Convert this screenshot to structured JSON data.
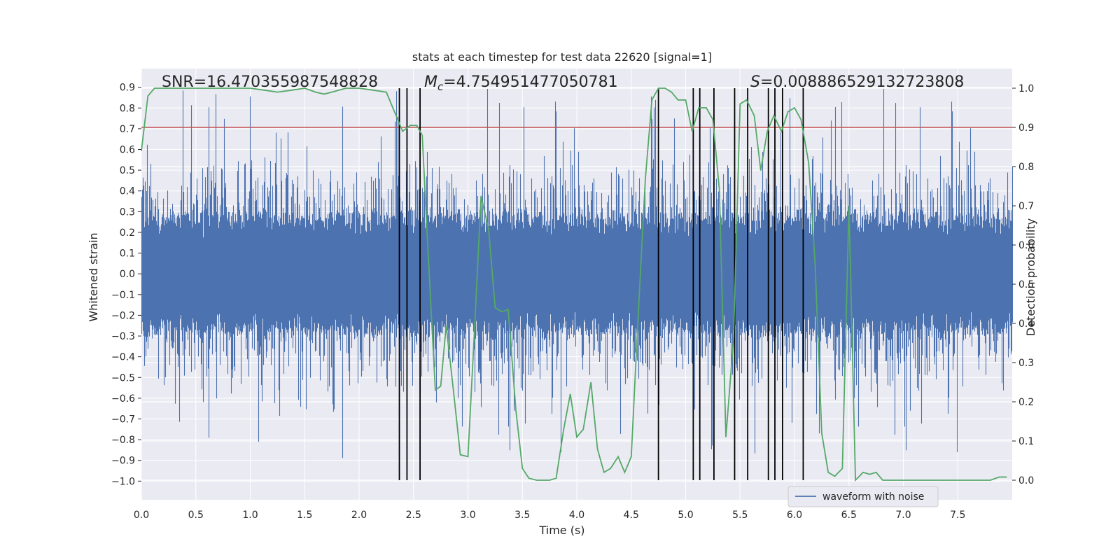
{
  "chart_data": {
    "type": "line",
    "title": "stats at each timestep for test data 22620 [signal=1]",
    "xlabel": "Time (s)",
    "ylabel": "Whitened strain",
    "y2label": "Detection probability",
    "xlim": [
      0.0,
      8.0
    ],
    "ylim": [
      -1.09,
      0.99
    ],
    "y2lim": [
      -0.05,
      1.05
    ],
    "xticks": [
      "0.0",
      "0.5",
      "1.0",
      "1.5",
      "2.0",
      "2.5",
      "3.0",
      "3.5",
      "4.0",
      "4.5",
      "5.0",
      "5.5",
      "6.0",
      "6.5",
      "7.0",
      "7.5"
    ],
    "yticks": [
      "0.9",
      "0.8",
      "0.7",
      "0.6",
      "0.5",
      "0.4",
      "0.3",
      "0.2",
      "0.1",
      "0.0",
      "−0.1",
      "−0.2",
      "−0.3",
      "−0.4",
      "−0.5",
      "−0.6",
      "−0.7",
      "−0.8",
      "−0.9",
      "−1.0"
    ],
    "y2ticks": [
      "1.0",
      "0.9",
      "0.8",
      "0.7",
      "0.6",
      "0.5",
      "0.4",
      "0.3",
      "0.2",
      "0.1",
      "0.0"
    ],
    "annotations": {
      "snr": "SNR=16.470355987548828",
      "mc_symbol": "M",
      "mc_sub": "c",
      "mc_value": "=4.754951477050781",
      "s_symbol": "S",
      "s_value": "=0.008886529132723808"
    },
    "threshold": 0.9,
    "threshold_color": "#c44e52",
    "vertical_lines_x": [
      2.37,
      2.44,
      2.56,
      4.75,
      5.07,
      5.13,
      5.26,
      5.45,
      5.57,
      5.76,
      5.82,
      5.89,
      6.08
    ],
    "series": [
      {
        "name": "waveform with noise",
        "color": "#4c72b0",
        "axis": "left",
        "description": "noise-dominated whitened strain sampled densely from 0 to 8 s, mostly within ±0.3 with spikes to about ±0.9"
      },
      {
        "name": "detection probability",
        "color": "#55a868",
        "axis": "right",
        "x": [
          0.0,
          0.06,
          0.12,
          0.25,
          0.38,
          0.5,
          0.63,
          0.75,
          0.88,
          1.0,
          1.13,
          1.25,
          1.38,
          1.5,
          1.6,
          1.68,
          1.75,
          1.88,
          2.0,
          2.13,
          2.25,
          2.31,
          2.4,
          2.47,
          2.53,
          2.58,
          2.63,
          2.7,
          2.75,
          2.8,
          2.87,
          2.93,
          3.0,
          3.06,
          3.12,
          3.19,
          3.25,
          3.31,
          3.37,
          3.44,
          3.5,
          3.56,
          3.63,
          3.69,
          3.75,
          3.81,
          3.88,
          3.94,
          4.0,
          4.06,
          4.13,
          4.19,
          4.25,
          4.31,
          4.38,
          4.44,
          4.5,
          4.56,
          4.63,
          4.69,
          4.75,
          4.81,
          4.87,
          4.93,
          5.0,
          5.06,
          5.12,
          5.19,
          5.25,
          5.31,
          5.37,
          5.44,
          5.5,
          5.56,
          5.63,
          5.69,
          5.75,
          5.81,
          5.88,
          5.94,
          6.0,
          6.06,
          6.13,
          6.19,
          6.25,
          6.31,
          6.37,
          6.44,
          6.5,
          6.56,
          6.63,
          6.69,
          6.75,
          6.81,
          6.88,
          7.0,
          7.13,
          7.25,
          7.38,
          7.5,
          7.63,
          7.75,
          7.8,
          7.88,
          7.95
        ],
        "values": [
          0.84,
          0.98,
          1.0,
          1.0,
          1.0,
          1.0,
          1.0,
          1.0,
          1.0,
          1.0,
          0.995,
          0.99,
          0.995,
          1.0,
          0.99,
          0.985,
          0.99,
          1.0,
          1.0,
          0.995,
          0.99,
          0.95,
          0.89,
          0.905,
          0.905,
          0.88,
          0.6,
          0.23,
          0.24,
          0.395,
          0.22,
          0.065,
          0.06,
          0.38,
          0.725,
          0.64,
          0.44,
          0.43,
          0.435,
          0.18,
          0.03,
          0.005,
          0.0,
          0.0,
          0.0,
          0.005,
          0.13,
          0.22,
          0.11,
          0.13,
          0.25,
          0.08,
          0.02,
          0.03,
          0.06,
          0.02,
          0.06,
          0.4,
          0.77,
          0.97,
          1.0,
          1.0,
          0.99,
          0.97,
          0.97,
          0.89,
          0.95,
          0.95,
          0.92,
          0.74,
          0.11,
          0.36,
          0.96,
          0.97,
          0.93,
          0.79,
          0.89,
          0.93,
          0.89,
          0.94,
          0.95,
          0.92,
          0.81,
          0.55,
          0.12,
          0.02,
          0.01,
          0.03,
          0.7,
          0.0,
          0.02,
          0.015,
          0.02,
          0.0,
          0.0,
          0.0,
          0.0,
          0.0,
          0.0,
          0.0,
          0.0,
          0.0,
          0.0,
          0.008,
          0.008
        ]
      }
    ],
    "legend": {
      "label": "waveform with noise",
      "placement": "lower-right"
    }
  }
}
